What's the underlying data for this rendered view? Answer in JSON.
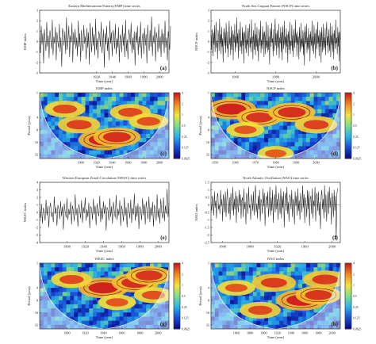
{
  "colors": {
    "series_line": "#222222",
    "axis": "#333333",
    "coi_overlay": "#ffffff",
    "significance_contour": "#8b0000",
    "colormap": [
      "#0a0a8c",
      "#1a4fd8",
      "#27b5ea",
      "#7fe08a",
      "#f5e23a",
      "#f58a1f",
      "#cf1b1b"
    ]
  },
  "chart_data": [
    {
      "id": "emp-ts",
      "type": "line",
      "panel_label": "(a)",
      "title": "Eastern Mediterranean Pattern (EMP) time series",
      "xlabel": "Time (year)",
      "ylabel": "EMP index",
      "xlim": [
        1848,
        2012
      ],
      "ylim": [
        -3,
        3
      ],
      "xticks": [
        1920,
        1940,
        1960,
        1980,
        2000
      ],
      "yticks": [
        -3,
        -2,
        -1,
        0,
        1,
        2,
        3
      ],
      "grid": false,
      "x_start": 1848,
      "x_step": 1,
      "y": [
        0.4,
        -1.1,
        1.5,
        -0.3,
        0.8,
        -2.1,
        1.2,
        0.1,
        -0.9,
        1.9,
        -0.5,
        0.6,
        -1.6,
        1.1,
        0.3,
        -0.7,
        2.1,
        -1.3,
        0.5,
        -0.2,
        1.4,
        -1.8,
        0.9,
        0.0,
        -0.6,
        1.7,
        -1.0,
        0.4,
        -2.4,
        1.3,
        0.7,
        -0.4,
        1.0,
        -1.2,
        2.3,
        -0.8,
        0.2,
        1.5,
        -1.5,
        0.6,
        -0.1,
        1.8,
        -2.0,
        0.9,
        -0.3,
        1.2,
        -0.7,
        0.4,
        -1.4,
        2.0,
        -0.5,
        0.8,
        -1.9,
        1.1,
        0.2,
        -0.9,
        1.6,
        -0.2,
        0.5,
        -1.7,
        1.3,
        -0.6,
        0.9,
        -2.2,
        1.8,
        0.1,
        -1.0,
        1.4,
        -0.4,
        0.7,
        -1.3,
        2.2,
        -0.8,
        0.3,
        -1.6,
        1.0,
        0.6,
        -0.5,
        1.9,
        -1.1,
        0.0,
        1.2,
        -2.5,
        0.8,
        -0.3,
        1.5,
        -0.9,
        0.4,
        -1.8,
        2.0,
        -0.2,
        0.9,
        -1.4,
        1.1,
        0.5,
        -0.7,
        1.7,
        -1.2,
        0.3,
        -0.6,
        1.4,
        -2.0,
        0.7,
        0.1,
        -1.0,
        1.6,
        -0.4,
        0.8,
        -1.5,
        2.1,
        -0.9,
        0.2,
        -1.7,
        1.2,
        0.6,
        -0.3,
        1.8,
        -1.1,
        0.4,
        -0.8,
        1.0,
        -2.3,
        0.9,
        -0.1,
        1.5,
        -1.3,
        0.5,
        -0.6,
        1.9,
        -1.6,
        0.3,
        0.8,
        -1.2,
        1.3,
        -0.4,
        0.7,
        -2.1,
        1.6,
        0.0,
        -0.9,
        1.1,
        -0.5,
        2.4,
        -1.4,
        0.6,
        -0.2,
        1.4,
        -1.9,
        0.9,
        0.3,
        -1.0,
        1.7,
        -0.7,
        0.5,
        -1.5,
        1.2,
        -0.3,
        0.8,
        -1.1,
        2.0,
        -0.6,
        0.4,
        -1.8,
        1.0,
        0.2,
        -0.8,
        1.5
      ]
    },
    {
      "id": "nscp-ts",
      "type": "line",
      "panel_label": "(b)",
      "title": "North Sea Caspian Pattern (NSCP) time series",
      "xlabel": "Time (year)",
      "ylabel": "NSCP index",
      "xlim": [
        1948,
        2012
      ],
      "ylim": [
        -3,
        3
      ],
      "xticks": [
        1960,
        1980,
        2000
      ],
      "yticks": [
        -3,
        -2,
        -1,
        0,
        1,
        2,
        3
      ],
      "grid": false,
      "x_start": 1948,
      "x_step": 0.25,
      "y": [
        0.6,
        -0.8,
        1.2,
        0.2,
        -1.4,
        0.9,
        -0.3,
        1.6,
        -1.0,
        0.4,
        1.9,
        -0.6,
        0.1,
        -1.7,
        1.1,
        0.5,
        -0.9,
        2.2,
        -0.2,
        0.7,
        -1.2,
        1.4,
        -0.5,
        0.3,
        -2.0,
        0.8,
        1.3,
        -0.4,
        0.9,
        -1.1,
        1.8,
        0.0,
        -0.7,
        1.0,
        -1.5,
        0.6,
        2.0,
        -0.3,
        0.4,
        -1.3,
        1.5,
        -0.8,
        0.2,
        1.1,
        -1.8,
        0.7,
        -0.1,
        1.7,
        -1.0,
        0.5,
        -0.6,
        2.3,
        -0.2,
        0.8,
        -1.6,
        1.2,
        0.3,
        -0.9,
        1.9,
        -0.5,
        0.1,
        -1.2,
        1.4,
        -0.4,
        0.9,
        -2.1,
        1.0,
        0.6,
        -0.7,
        1.6,
        -1.1,
        0.2,
        -0.3,
        1.3,
        -1.4,
        0.8,
        1.7,
        -0.6,
        0.4,
        -1.0,
        2.1,
        -0.2,
        0.5,
        -1.7,
        1.1,
        0.0,
        -0.8,
        1.8,
        -1.3,
        0.7,
        -0.5,
        1.4,
        -0.9,
        0.3,
        -1.9,
        1.2,
        0.6,
        -0.4,
        2.0,
        -1.1,
        0.2,
        -0.7,
        1.5,
        -0.3,
        0.9,
        -1.5,
        1.0,
        0.4,
        -1.2,
        1.9,
        -0.6,
        0.1,
        -1.0,
        1.6,
        -0.8,
        0.5,
        -2.2,
        1.3,
        0.7,
        -0.5,
        1.8,
        -0.1,
        0.3,
        -1.4,
        1.2,
        -0.9,
        0.6,
        2.2,
        -0.4,
        0.8,
        -1.3,
        1.1,
        0.0,
        -0.6,
        1.7,
        -1.6,
        0.4,
        -0.2,
        1.4,
        -1.0,
        0.9,
        -1.8,
        1.5,
        0.2,
        -0.7,
        2.0,
        -0.3,
        0.5,
        -1.1,
        1.3,
        -0.5,
        0.7,
        -2.0,
        1.0,
        0.3,
        -0.8,
        1.9,
        -1.2,
        0.1,
        -0.4,
        1.6,
        -0.9,
        0.6,
        -1.5,
        1.2,
        0.4,
        -0.6,
        2.1,
        -0.1,
        0.8,
        -1.4,
        1.0,
        -0.3,
        0.5,
        -1.7,
        1.4,
        0.2,
        -1.0,
        1.8,
        -0.7,
        0.3,
        -0.5,
        1.1,
        -1.3,
        0.9,
        -2.3,
        1.5,
        0.6,
        -0.2,
        1.7,
        -1.1,
        0.4,
        -0.8,
        1.3,
        -0.6,
        0.7,
        -1.9,
        1.0,
        0.1,
        -0.4,
        2.0,
        -0.9,
        0.5,
        -1.2,
        1.6,
        -0.3,
        0.8,
        -1.6,
        1.2,
        0.3,
        -0.7,
        1.9,
        -0.2,
        0.6,
        -1.4,
        1.1,
        -0.5,
        0.9,
        -2.0,
        1.4,
        0.2,
        -1.0,
        1.7,
        -0.8,
        0.4,
        -0.6,
        1.3,
        -1.3,
        0.7,
        1.9,
        -0.4,
        0.5,
        -1.1,
        1.2,
        0.0,
        -0.9,
        1.8,
        -1.5,
        0.6,
        -0.3,
        1.5,
        -1.0,
        0.8,
        -1.7,
        1.1,
        0.3,
        -0.7,
        2.1,
        -0.2,
        0.4,
        -1.2,
        1.4,
        -0.5,
        0.9,
        -1.9,
        1.0,
        0.2
      ]
    },
    {
      "id": "emp-wavelet",
      "type": "heatmap",
      "panel_label": "(c)",
      "title": "EMP index",
      "xlabel": "Time (year)",
      "ylabel": "Period (year)",
      "xlim": [
        1848,
        2012
      ],
      "xticks": [
        1900,
        1920,
        1940,
        1960,
        1980,
        2000
      ],
      "ylim": [
        1,
        40
      ],
      "yticks": [
        1,
        4,
        8,
        16,
        32
      ],
      "log_scale_y": true,
      "colorbar": [
        4,
        2,
        1,
        0.5,
        0.25,
        0.125,
        0.0625
      ],
      "features": [
        {
          "center_year": 1929,
          "period": 14,
          "strength": 1
        },
        {
          "center_year": 1946,
          "period": 12,
          "strength": 0.9
        },
        {
          "center_year": 1898,
          "period": 6,
          "strength": 0.75
        },
        {
          "center_year": 1963,
          "period": 3,
          "strength": 0.7
        },
        {
          "center_year": 1986,
          "period": 5,
          "strength": 0.65
        },
        {
          "center_year": 1880,
          "period": 2.5,
          "strength": 0.7
        }
      ]
    },
    {
      "id": "nscp-wavelet",
      "type": "heatmap",
      "panel_label": "(d)",
      "title": "NSCP index",
      "xlabel": "Time (year)",
      "ylabel": "Period (year)",
      "xlim": [
        1948,
        2012
      ],
      "xticks": [
        1950,
        1960,
        1970,
        1980,
        1990,
        2000
      ],
      "ylim": [
        1,
        40
      ],
      "yticks": [
        1,
        4,
        8,
        16,
        32
      ],
      "log_scale_y": true,
      "colorbar": [
        4,
        2,
        1,
        0.5,
        0.25,
        0.125,
        0.0625
      ],
      "features": [
        {
          "center_year": 1958,
          "period": 2.5,
          "strength": 1
        },
        {
          "center_year": 1972,
          "period": 4,
          "strength": 0.85
        },
        {
          "center_year": 1988,
          "period": 3,
          "strength": 0.9
        },
        {
          "center_year": 2000,
          "period": 6,
          "strength": 0.75
        },
        {
          "center_year": 1965,
          "period": 8,
          "strength": 0.6
        },
        {
          "center_year": 1980,
          "period": 30,
          "strength": 0.55
        }
      ]
    },
    {
      "id": "wezc-ts",
      "type": "line",
      "panel_label": "(e)",
      "title": "Western European Zonal Circulation (WEZC) time series",
      "xlabel": "Time (year)",
      "ylabel": "WEZC index",
      "xlim": [
        1870,
        2012
      ],
      "ylim": [
        -4,
        4
      ],
      "xticks": [
        1900,
        1920,
        1940,
        1960,
        1980,
        2000
      ],
      "yticks": [
        -4,
        -3,
        -2,
        -1,
        0,
        1,
        2,
        3,
        4
      ],
      "grid": false,
      "x_start": 1870,
      "x_step": 1,
      "y": [
        0.3,
        -0.8,
        1.1,
        -1.5,
        0.6,
        0.2,
        -1.1,
        1.7,
        -0.4,
        0.9,
        -2.0,
        0.5,
        1.3,
        -0.6,
        0.0,
        -1.3,
        2.1,
        -0.2,
        0.7,
        -1.8,
        1.0,
        0.4,
        -0.9,
        1.5,
        -0.5,
        0.8,
        -2.3,
        1.2,
        0.1,
        -0.7,
        1.9,
        -1.0,
        0.5,
        -0.3,
        1.4,
        -1.6,
        0.9,
        0.2,
        -1.2,
        2.4,
        -0.4,
        0.6,
        -1.9,
        1.1,
        0.3,
        -0.8,
        1.6,
        -1.4,
        0.7,
        -0.1,
        2.0,
        -1.1,
        0.4,
        -0.6,
        1.3,
        -2.1,
        0.8,
        0.5,
        -1.0,
        1.8,
        -0.3,
        0.9,
        -1.7,
        1.2,
        0.0,
        -0.5,
        2.2,
        -1.3,
        0.6,
        -0.9,
        1.5,
        -0.2,
        1.0,
        -2.4,
        0.7,
        0.3,
        -1.1,
        1.9,
        -0.6,
        0.8,
        -1.5,
        1.4,
        0.2,
        -0.7,
        2.3,
        -1.0,
        0.5,
        -0.4,
        1.6,
        -1.8,
        0.9,
        0.1,
        -1.2,
        2.0,
        -0.5,
        0.7,
        -2.0,
        1.3,
        0.4,
        -0.8,
        1.7,
        -1.4,
        0.6,
        -0.3,
        2.5,
        -1.1,
        0.9,
        -0.6,
        1.2,
        -2.2,
        0.8,
        0.2,
        -1.0,
        1.9,
        -0.4,
        1.1,
        -1.6,
        1.5,
        0.3,
        -0.9,
        2.1,
        -1.3,
        0.7,
        -0.5,
        1.4,
        -1.9,
        1.0,
        0.4,
        -1.1,
        2.4,
        -0.7,
        0.6,
        -1.5,
        1.8,
        0.1,
        -0.8,
        2.0,
        -1.2,
        0.9,
        -0.2,
        3.1,
        -0.6,
        1.3
      ]
    },
    {
      "id": "nao-ts",
      "type": "line",
      "panel_label": "(f)",
      "title": "North Atlantic Oscillation (NAO) time series",
      "xlabel": "Time (year)",
      "ylabel": "NAO index",
      "xlim": [
        1823,
        2012
      ],
      "ylim": [
        -2.5,
        1.5
      ],
      "xticks": [
        1840,
        1880,
        1920,
        1960,
        2000
      ],
      "yticks": [
        -2.5,
        -2,
        -1.5,
        -1,
        -0.5,
        0,
        0.5,
        1,
        1.5
      ],
      "grid": false,
      "x_start": 1823,
      "x_step": 1,
      "y": [
        0.2,
        -0.4,
        0.6,
        0.1,
        -0.7,
        0.9,
        -0.2,
        0.3,
        -0.9,
        0.5,
        0.8,
        -0.3,
        0.0,
        -0.6,
        1.0,
        -0.1,
        0.4,
        -1.1,
        0.7,
        0.2,
        -0.5,
        0.9,
        -0.8,
        0.3,
        1.1,
        -0.2,
        -0.6,
        0.5,
        -1.0,
        0.8,
        0.1,
        -0.4,
        1.2,
        -0.7,
        0.4,
        -0.3,
        0.9,
        -1.2,
        0.6,
        0.0,
        -0.5,
        1.0,
        -0.1,
        0.7,
        -0.9,
        0.3,
        0.5,
        -0.8,
        1.1,
        -0.3,
        0.2,
        -1.3,
        0.8,
        0.4,
        -0.6,
        1.2,
        -0.2,
        0.0,
        -1.0,
        0.7,
        0.3,
        -0.4,
        0.9,
        -0.7,
        0.5,
        1.3,
        -0.5,
        0.1,
        -0.9,
        0.6,
        -0.3,
        1.0,
        -1.1,
        0.4,
        0.2,
        -0.6,
        1.1,
        -0.1,
        0.8,
        -1.4,
        0.3,
        0.6,
        -0.2,
        0.9,
        -0.8,
        0.0,
        1.2,
        -0.7,
        0.5,
        -0.4,
        1.0,
        -1.2,
        0.2,
        0.7,
        -0.5,
        1.3,
        -0.3,
        0.4,
        -1.0,
        0.8,
        0.1,
        -0.6,
        1.1,
        -0.9,
        0.6,
        -0.2,
        0.9,
        -1.5,
        0.3,
        0.8,
        -0.4,
        1.2,
        -0.6,
        0.2,
        -1.1,
        0.7,
        0.5,
        -0.3,
        1.0,
        -0.8,
        0.4,
        0.1,
        -1.3,
        0.9,
        -0.1,
        0.6,
        -0.7,
        1.1,
        -0.4,
        0.3,
        -1.0,
        0.8,
        0.2,
        -0.5,
        1.3,
        -0.2,
        0.7,
        -1.2,
        0.5,
        0.0,
        -0.8,
        1.0,
        -0.3,
        0.9,
        -1.4,
        0.4,
        0.6,
        -0.6,
        1.1,
        -0.9,
        0.3,
        -0.1,
        1.2,
        -1.1,
        0.5,
        0.8,
        -0.4,
        0.9,
        -0.7,
        0.2,
        -1.6,
        0.6,
        1.0,
        -0.3,
        0.4,
        -0.9,
        1.3,
        -0.5,
        0.7,
        -1.1,
        0.1,
        0.9,
        -0.6,
        1.2,
        -0.2,
        0.5,
        -1.3,
        0.8,
        0.3,
        -0.8,
        1.0,
        -0.4,
        0.6,
        -2.3,
        0.7,
        1.1
      ]
    },
    {
      "id": "wezc-wavelet",
      "type": "heatmap",
      "panel_label": "(g)",
      "title": "WEZC index",
      "xlabel": "Time (year)",
      "ylabel": "Period (year)",
      "xlim": [
        1870,
        2012
      ],
      "xticks": [
        1900,
        1920,
        1940,
        1960,
        1980,
        2000
      ],
      "ylim": [
        1,
        40
      ],
      "yticks": [
        1,
        4,
        8,
        16,
        32
      ],
      "log_scale_y": true,
      "colorbar": [
        4,
        2,
        1,
        0.5,
        0.25,
        0.125,
        0.0625
      ],
      "features": [
        {
          "center_year": 1940,
          "period": 4,
          "strength": 1
        },
        {
          "center_year": 1975,
          "period": 3,
          "strength": 0.9
        },
        {
          "center_year": 1990,
          "period": 2,
          "strength": 0.85
        },
        {
          "center_year": 1905,
          "period": 2.5,
          "strength": 0.7
        },
        {
          "center_year": 1955,
          "period": 9,
          "strength": 0.6
        },
        {
          "center_year": 1995,
          "period": 6,
          "strength": 0.65
        }
      ]
    },
    {
      "id": "nao-wavelet",
      "type": "heatmap",
      "panel_label": "(h)",
      "title": "NAO index",
      "xlabel": "Time (year)",
      "ylabel": "Period (year)",
      "xlim": [
        1823,
        2012
      ],
      "xticks": [
        1860,
        1880,
        1900,
        1920,
        1940,
        1960,
        1980,
        2000
      ],
      "ylim": [
        1,
        40
      ],
      "yticks": [
        1,
        4,
        8,
        16,
        32
      ],
      "log_scale_y": true,
      "colorbar": [
        4,
        2,
        1,
        0.5,
        0.25,
        0.125,
        0.0625
      ],
      "features": [
        {
          "center_year": 1955,
          "period": 8,
          "strength": 1
        },
        {
          "center_year": 1980,
          "period": 6,
          "strength": 0.85
        },
        {
          "center_year": 1915,
          "period": 3,
          "strength": 0.8
        },
        {
          "center_year": 1895,
          "period": 14,
          "strength": 0.7
        },
        {
          "center_year": 1990,
          "period": 2.5,
          "strength": 0.8
        },
        {
          "center_year": 1860,
          "period": 4,
          "strength": 0.6
        }
      ]
    }
  ]
}
